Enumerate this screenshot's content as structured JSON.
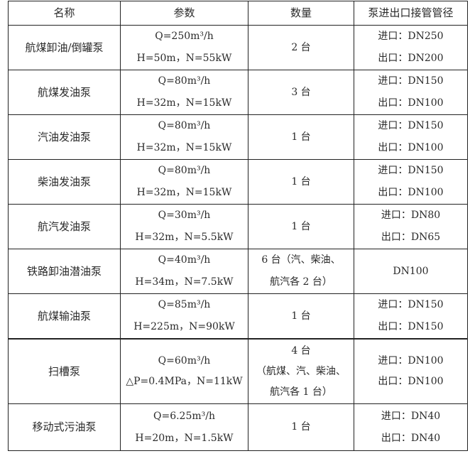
{
  "headers": [
    "名称",
    "参数",
    "数量",
    "泵进出口接管管径"
  ],
  "rows": [
    {
      "name": "航煤卸油/倒罐泵",
      "params": [
        "Q=250m³/h",
        "H=50m，N=55kW"
      ],
      "qty": [
        "2 台"
      ],
      "pipe": [
        "进口：DN250",
        "出口：DN200"
      ]
    },
    {
      "name": "航煤发油泵",
      "params": [
        "Q=80m³/h",
        "H=32m，N=15kW"
      ],
      "qty": [
        "3 台"
      ],
      "pipe": [
        "进口：DN150",
        "出口：DN100"
      ]
    },
    {
      "name": "汽油发油泵",
      "params": [
        "Q=80m³/h",
        "H=32m，N=15kW"
      ],
      "qty": [
        "1 台"
      ],
      "pipe": [
        "进口：DN150",
        "出口：DN100"
      ]
    },
    {
      "name": "柴油发油泵",
      "params": [
        "Q=80m³/h",
        "H=32m，N=15kW"
      ],
      "qty": [
        "1 台"
      ],
      "pipe": [
        "进口：DN150",
        "出口：DN100"
      ]
    },
    {
      "name": "航汽发油泵",
      "params": [
        "Q=30m³/h",
        "H=32m，N=5.5kW"
      ],
      "qty": [
        "1 台"
      ],
      "pipe": [
        "进口：DN80",
        "出口：DN65"
      ]
    },
    {
      "name": "铁路卸油潜油泵",
      "params": [
        "Q=40m³/h",
        "H=34m，N=7.5kW"
      ],
      "qty": [
        "6 台（汽、柴油、",
        "航汽各 2 台）"
      ],
      "pipe": [
        "DN100"
      ]
    },
    {
      "name": "航煤输油泵",
      "params": [
        "Q=85m³/h",
        "H=225m，N=90kW"
      ],
      "qty": [
        "1 台"
      ],
      "pipe": [
        "进口：DN150",
        "出口：DN150"
      ]
    },
    {
      "name": "扫槽泵",
      "params": [
        "Q=60m³/h",
        "△P=0.4MPa，N=11kW"
      ],
      "qty": [
        "4 台",
        "（航煤、汽、柴油、",
        "航汽各 1 台）"
      ],
      "pipe": [
        "进口：DN100",
        "出口：DN100"
      ]
    },
    {
      "name": "移动式污油泵",
      "params": [
        "Q=6.25m³/h",
        "H=20m，N=1.5kW"
      ],
      "qty": [
        "1 台"
      ],
      "pipe": [
        "进口：DN40",
        "出口：DN40"
      ]
    }
  ]
}
